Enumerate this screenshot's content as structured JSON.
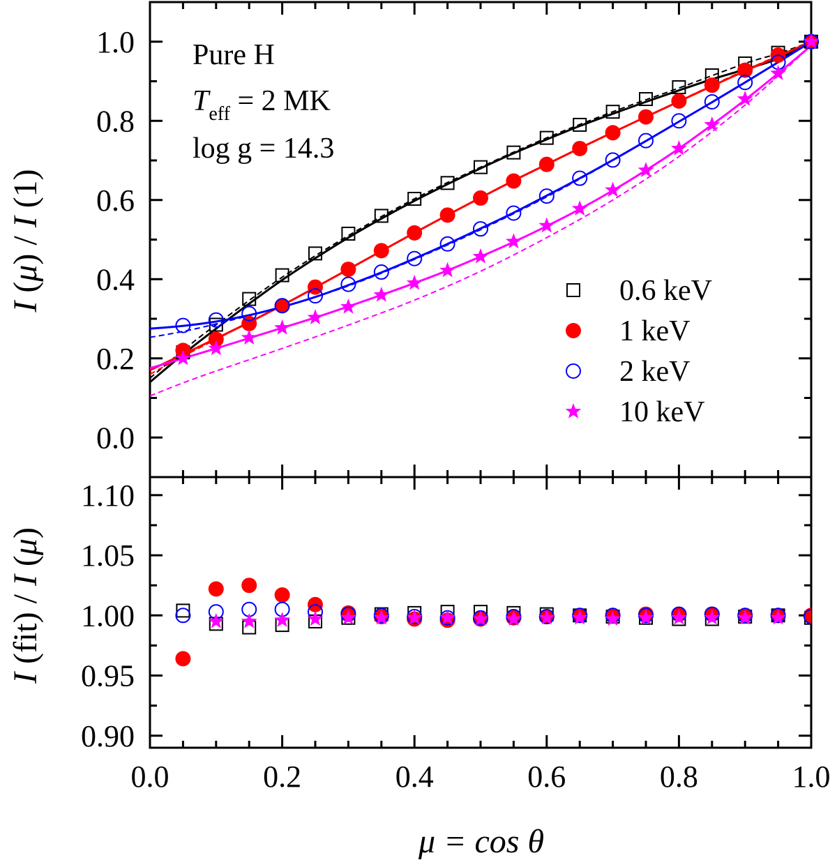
{
  "chart_data": [
    {
      "type": "line",
      "panel": "top",
      "ylabel_parts": [
        "I",
        " (",
        "μ",
        ") / ",
        "I",
        " (1)"
      ],
      "xlim": [
        0.0,
        1.0
      ],
      "ylim": [
        -0.1,
        1.1
      ],
      "yticks": [
        "0.0",
        "0.2",
        "0.4",
        "0.6",
        "0.8",
        "1.0"
      ],
      "annotations": {
        "line1": "Pure H",
        "teff_T": "T",
        "teff_sub": "eff",
        "teff_rest": " = 2 MK",
        "line3": "log g = 14.3"
      },
      "legend_position": "right",
      "series": [
        {
          "name": "0.6 keV",
          "marker": "open-square",
          "color": "#000000",
          "x": [
            0.05,
            0.1,
            0.15,
            0.2,
            0.25,
            0.3,
            0.35,
            0.4,
            0.45,
            0.5,
            0.55,
            0.6,
            0.65,
            0.7,
            0.75,
            0.8,
            0.85,
            0.9,
            0.95,
            1.0
          ],
          "y": [
            0.215,
            0.285,
            0.35,
            0.41,
            0.465,
            0.515,
            0.56,
            0.603,
            0.643,
            0.683,
            0.72,
            0.757,
            0.79,
            0.823,
            0.855,
            0.885,
            0.915,
            0.945,
            0.972,
            1.0
          ],
          "fit_solid": [
            [
              0.0,
              0.14
            ],
            [
              0.05,
              0.21
            ],
            [
              0.1,
              0.275
            ],
            [
              0.15,
              0.338
            ],
            [
              0.2,
              0.398
            ],
            [
              0.25,
              0.453
            ],
            [
              0.3,
              0.505
            ],
            [
              0.35,
              0.553
            ],
            [
              0.4,
              0.598
            ],
            [
              0.45,
              0.64
            ],
            [
              0.5,
              0.68
            ],
            [
              0.55,
              0.718
            ],
            [
              0.6,
              0.753
            ],
            [
              0.65,
              0.787
            ],
            [
              0.7,
              0.818
            ],
            [
              0.75,
              0.848
            ],
            [
              0.8,
              0.877
            ],
            [
              0.85,
              0.905
            ],
            [
              0.9,
              0.93
            ],
            [
              0.95,
              0.957
            ],
            [
              1.0,
              0.997
            ]
          ],
          "fit_dashed": [
            [
              0.0,
              0.15
            ],
            [
              0.05,
              0.22
            ],
            [
              0.1,
              0.285
            ],
            [
              0.2,
              0.405
            ],
            [
              0.3,
              0.51
            ],
            [
              0.4,
              0.603
            ],
            [
              0.5,
              0.683
            ],
            [
              0.6,
              0.757
            ],
            [
              0.7,
              0.823
            ],
            [
              0.8,
              0.883
            ],
            [
              0.9,
              0.945
            ],
            [
              0.95,
              0.97
            ],
            [
              1.0,
              1.0
            ]
          ]
        },
        {
          "name": "1 keV",
          "marker": "filled-circle",
          "color": "#ff0000",
          "x": [
            0.05,
            0.1,
            0.15,
            0.2,
            0.25,
            0.3,
            0.35,
            0.4,
            0.45,
            0.5,
            0.55,
            0.6,
            0.65,
            0.7,
            0.75,
            0.8,
            0.85,
            0.9,
            0.95,
            1.0
          ],
          "y": [
            0.22,
            0.248,
            0.288,
            0.333,
            0.38,
            0.425,
            0.472,
            0.517,
            0.562,
            0.605,
            0.648,
            0.69,
            0.73,
            0.77,
            0.81,
            0.85,
            0.89,
            0.928,
            0.966,
            1.0
          ],
          "fit_solid": [
            [
              0.0,
              0.17
            ],
            [
              0.05,
              0.21
            ],
            [
              0.1,
              0.25
            ],
            [
              0.15,
              0.291
            ],
            [
              0.2,
              0.334
            ],
            [
              0.25,
              0.379
            ],
            [
              0.3,
              0.425
            ],
            [
              0.35,
              0.471
            ],
            [
              0.4,
              0.517
            ],
            [
              0.45,
              0.562
            ],
            [
              0.5,
              0.606
            ],
            [
              0.55,
              0.649
            ],
            [
              0.6,
              0.69
            ],
            [
              0.65,
              0.731
            ],
            [
              0.7,
              0.771
            ],
            [
              0.75,
              0.81
            ],
            [
              0.8,
              0.849
            ],
            [
              0.85,
              0.888
            ],
            [
              0.9,
              0.926
            ],
            [
              0.95,
              0.963
            ],
            [
              1.0,
              1.0
            ]
          ],
          "fit_dashed": [
            [
              0.0,
              0.16
            ],
            [
              0.05,
              0.205
            ],
            [
              0.1,
              0.248
            ],
            [
              0.2,
              0.333
            ],
            [
              0.3,
              0.425
            ],
            [
              0.4,
              0.517
            ],
            [
              0.5,
              0.605
            ],
            [
              0.6,
              0.69
            ],
            [
              0.7,
              0.77
            ],
            [
              0.8,
              0.85
            ],
            [
              0.9,
              0.928
            ],
            [
              1.0,
              1.0
            ]
          ]
        },
        {
          "name": "2 keV",
          "marker": "open-circle",
          "color": "#0000ff",
          "x": [
            0.05,
            0.1,
            0.15,
            0.2,
            0.25,
            0.3,
            0.35,
            0.4,
            0.45,
            0.5,
            0.55,
            0.6,
            0.65,
            0.7,
            0.75,
            0.8,
            0.85,
            0.9,
            0.95,
            1.0
          ],
          "y": [
            0.283,
            0.297,
            0.313,
            0.333,
            0.358,
            0.387,
            0.418,
            0.452,
            0.489,
            0.527,
            0.567,
            0.61,
            0.655,
            0.701,
            0.75,
            0.8,
            0.848,
            0.897,
            0.948,
            1.0
          ],
          "fit_solid": [
            [
              0.0,
              0.275
            ],
            [
              0.05,
              0.282
            ],
            [
              0.1,
              0.293
            ],
            [
              0.15,
              0.309
            ],
            [
              0.2,
              0.33
            ],
            [
              0.25,
              0.355
            ],
            [
              0.3,
              0.385
            ],
            [
              0.35,
              0.417
            ],
            [
              0.4,
              0.452
            ],
            [
              0.45,
              0.489
            ],
            [
              0.5,
              0.528
            ],
            [
              0.55,
              0.568
            ],
            [
              0.6,
              0.611
            ],
            [
              0.65,
              0.655
            ],
            [
              0.7,
              0.701
            ],
            [
              0.75,
              0.749
            ],
            [
              0.8,
              0.798
            ],
            [
              0.85,
              0.847
            ],
            [
              0.9,
              0.897
            ],
            [
              0.95,
              0.948
            ],
            [
              1.0,
              1.0
            ]
          ],
          "fit_dashed": [
            [
              0.0,
              0.253
            ],
            [
              0.05,
              0.268
            ],
            [
              0.1,
              0.287
            ],
            [
              0.2,
              0.33
            ],
            [
              0.3,
              0.383
            ],
            [
              0.4,
              0.45
            ],
            [
              0.5,
              0.525
            ],
            [
              0.6,
              0.608
            ],
            [
              0.7,
              0.7
            ],
            [
              0.8,
              0.798
            ],
            [
              0.9,
              0.897
            ],
            [
              1.0,
              1.0
            ]
          ]
        },
        {
          "name": "10  keV",
          "marker": "filled-star",
          "color": "#ff00ff",
          "x": [
            0.05,
            0.1,
            0.15,
            0.2,
            0.25,
            0.3,
            0.35,
            0.4,
            0.45,
            0.5,
            0.55,
            0.6,
            0.65,
            0.7,
            0.75,
            0.8,
            0.85,
            0.9,
            0.95,
            1.0
          ],
          "y": [
            0.2,
            0.225,
            0.252,
            0.277,
            0.303,
            0.33,
            0.36,
            0.39,
            0.422,
            0.457,
            0.495,
            0.535,
            0.578,
            0.625,
            0.675,
            0.73,
            0.79,
            0.855,
            0.92,
            1.0
          ],
          "fit_solid": [
            [
              0.0,
              0.175
            ],
            [
              0.05,
              0.2
            ],
            [
              0.1,
              0.225
            ],
            [
              0.15,
              0.251
            ],
            [
              0.2,
              0.277
            ],
            [
              0.25,
              0.303
            ],
            [
              0.3,
              0.331
            ],
            [
              0.35,
              0.36
            ],
            [
              0.4,
              0.39
            ],
            [
              0.45,
              0.422
            ],
            [
              0.5,
              0.457
            ],
            [
              0.55,
              0.494
            ],
            [
              0.6,
              0.534
            ],
            [
              0.65,
              0.577
            ],
            [
              0.7,
              0.624
            ],
            [
              0.75,
              0.675
            ],
            [
              0.8,
              0.73
            ],
            [
              0.85,
              0.79
            ],
            [
              0.9,
              0.853
            ],
            [
              0.95,
              0.92
            ],
            [
              1.0,
              0.99
            ]
          ],
          "fit_dashed": [
            [
              0.0,
              0.105
            ],
            [
              0.05,
              0.138
            ],
            [
              0.1,
              0.168
            ],
            [
              0.2,
              0.225
            ],
            [
              0.3,
              0.284
            ],
            [
              0.4,
              0.347
            ],
            [
              0.5,
              0.42
            ],
            [
              0.6,
              0.505
            ],
            [
              0.7,
              0.6
            ],
            [
              0.8,
              0.71
            ],
            [
              0.9,
              0.84
            ],
            [
              1.0,
              0.99
            ]
          ]
        }
      ]
    },
    {
      "type": "scatter",
      "panel": "bottom",
      "xlabel": "μ = cos θ",
      "ylabel_parts": [
        "I",
        " (fit) / ",
        "I",
        " (",
        "μ",
        ")"
      ],
      "xlim": [
        0.0,
        1.0
      ],
      "ylim": [
        0.89,
        1.115
      ],
      "xticks": [
        "0.0",
        "0.2",
        "0.4",
        "0.6",
        "0.8",
        "1.0"
      ],
      "yticks": [
        "0.90",
        "0.95",
        "1.00",
        "1.05",
        "1.10"
      ],
      "series": [
        {
          "name": "0.6 keV",
          "marker": "open-square",
          "color": "#000000",
          "x": [
            0.05,
            0.1,
            0.15,
            0.2,
            0.25,
            0.3,
            0.35,
            0.4,
            0.45,
            0.5,
            0.55,
            0.6,
            0.65,
            0.7,
            0.75,
            0.8,
            0.85,
            0.9,
            0.95,
            1.0
          ],
          "y": [
            1.004,
            0.993,
            0.99,
            0.992,
            0.995,
            0.998,
            1.001,
            1.002,
            1.003,
            1.003,
            1.002,
            1.001,
            1.0,
            0.999,
            0.998,
            0.997,
            0.997,
            0.999,
            1.0,
            0.998
          ]
        },
        {
          "name": "1 keV",
          "marker": "filled-circle",
          "color": "#ff0000",
          "x": [
            0.05,
            0.1,
            0.15,
            0.2,
            0.25,
            0.3,
            0.35,
            0.4,
            0.45,
            0.5,
            0.55,
            0.6,
            0.65,
            0.7,
            0.75,
            0.8,
            0.85,
            0.9,
            0.95,
            1.0
          ],
          "y": [
            0.964,
            1.022,
            1.025,
            1.017,
            1.009,
            1.002,
            0.999,
            0.997,
            0.996,
            0.997,
            0.998,
            0.999,
            1.0,
            1.0,
            1.001,
            1.001,
            1.001,
            1.0,
            1.0,
            1.0
          ]
        },
        {
          "name": "2 keV",
          "marker": "open-circle",
          "color": "#0000ff",
          "x": [
            0.05,
            0.1,
            0.15,
            0.2,
            0.25,
            0.3,
            0.35,
            0.4,
            0.45,
            0.5,
            0.55,
            0.6,
            0.65,
            0.7,
            0.75,
            0.8,
            0.85,
            0.9,
            0.95,
            1.0
          ],
          "y": [
            1.0,
            1.003,
            1.005,
            1.005,
            1.003,
            1.001,
            1.0,
            0.999,
            0.998,
            0.998,
            0.999,
            0.999,
            1.0,
            1.0,
            1.0,
            1.001,
            1.001,
            1.0,
            1.0,
            0.999
          ]
        },
        {
          "name": "10  keV",
          "marker": "filled-star",
          "color": "#ff00ff",
          "x": [
            0.1,
            0.15,
            0.2,
            0.25,
            0.3,
            0.35,
            0.4,
            0.45,
            0.5,
            0.55,
            0.6,
            0.65,
            0.7,
            0.75,
            0.8,
            0.85,
            0.9,
            0.95
          ],
          "y": [
            0.995,
            0.995,
            0.996,
            0.997,
            0.998,
            0.998,
            0.998,
            0.998,
            0.997,
            0.997,
            0.998,
            0.998,
            0.997,
            0.998,
            0.998,
            0.998,
            0.998,
            0.998
          ]
        }
      ]
    }
  ]
}
